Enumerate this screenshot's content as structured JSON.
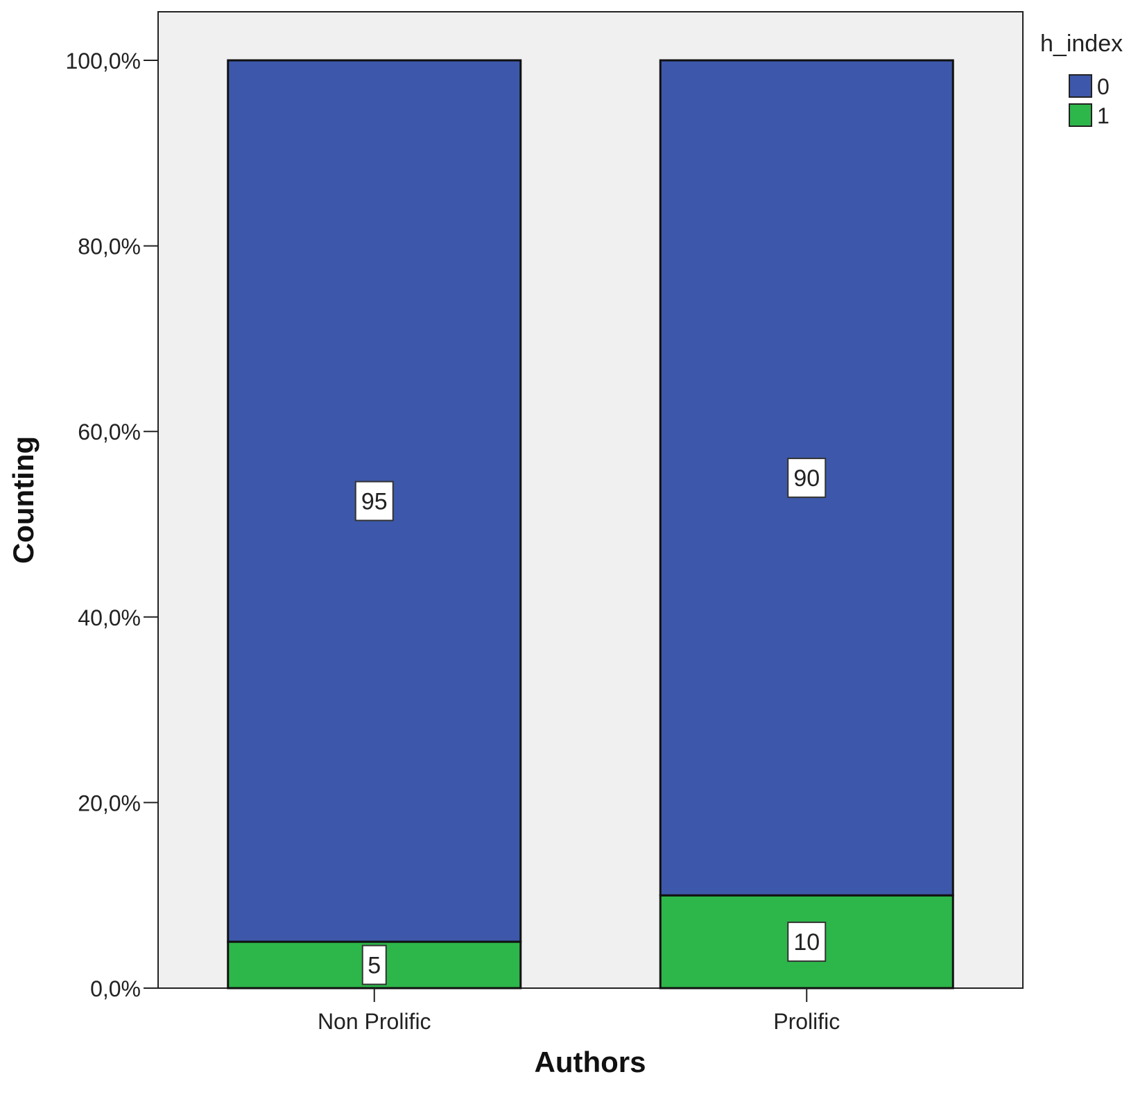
{
  "chart_data": {
    "type": "bar",
    "stacked": true,
    "percent_stacked": true,
    "categories": [
      "Non Prolific",
      "Prolific"
    ],
    "series": [
      {
        "name": "0",
        "values": [
          95,
          90
        ],
        "labels": [
          "95",
          "90"
        ],
        "color": "#3d58aa"
      },
      {
        "name": "1",
        "values": [
          5,
          10
        ],
        "labels": [
          "5",
          "10"
        ],
        "color": "#2db74a"
      }
    ],
    "title": "",
    "xlabel": "Authors",
    "ylabel": "Counting",
    "ylim": [
      0,
      100
    ],
    "yticks": [
      0,
      20,
      40,
      60,
      80,
      100
    ],
    "ytick_labels": [
      "0,0%",
      "20,0%",
      "40,0%",
      "60,0%",
      "80,0%",
      "100,0%"
    ],
    "legend": {
      "title": "h_index",
      "position": "right-top",
      "items": [
        "0",
        "1"
      ]
    },
    "grid": false,
    "plot_background": "#f0f0f0"
  }
}
